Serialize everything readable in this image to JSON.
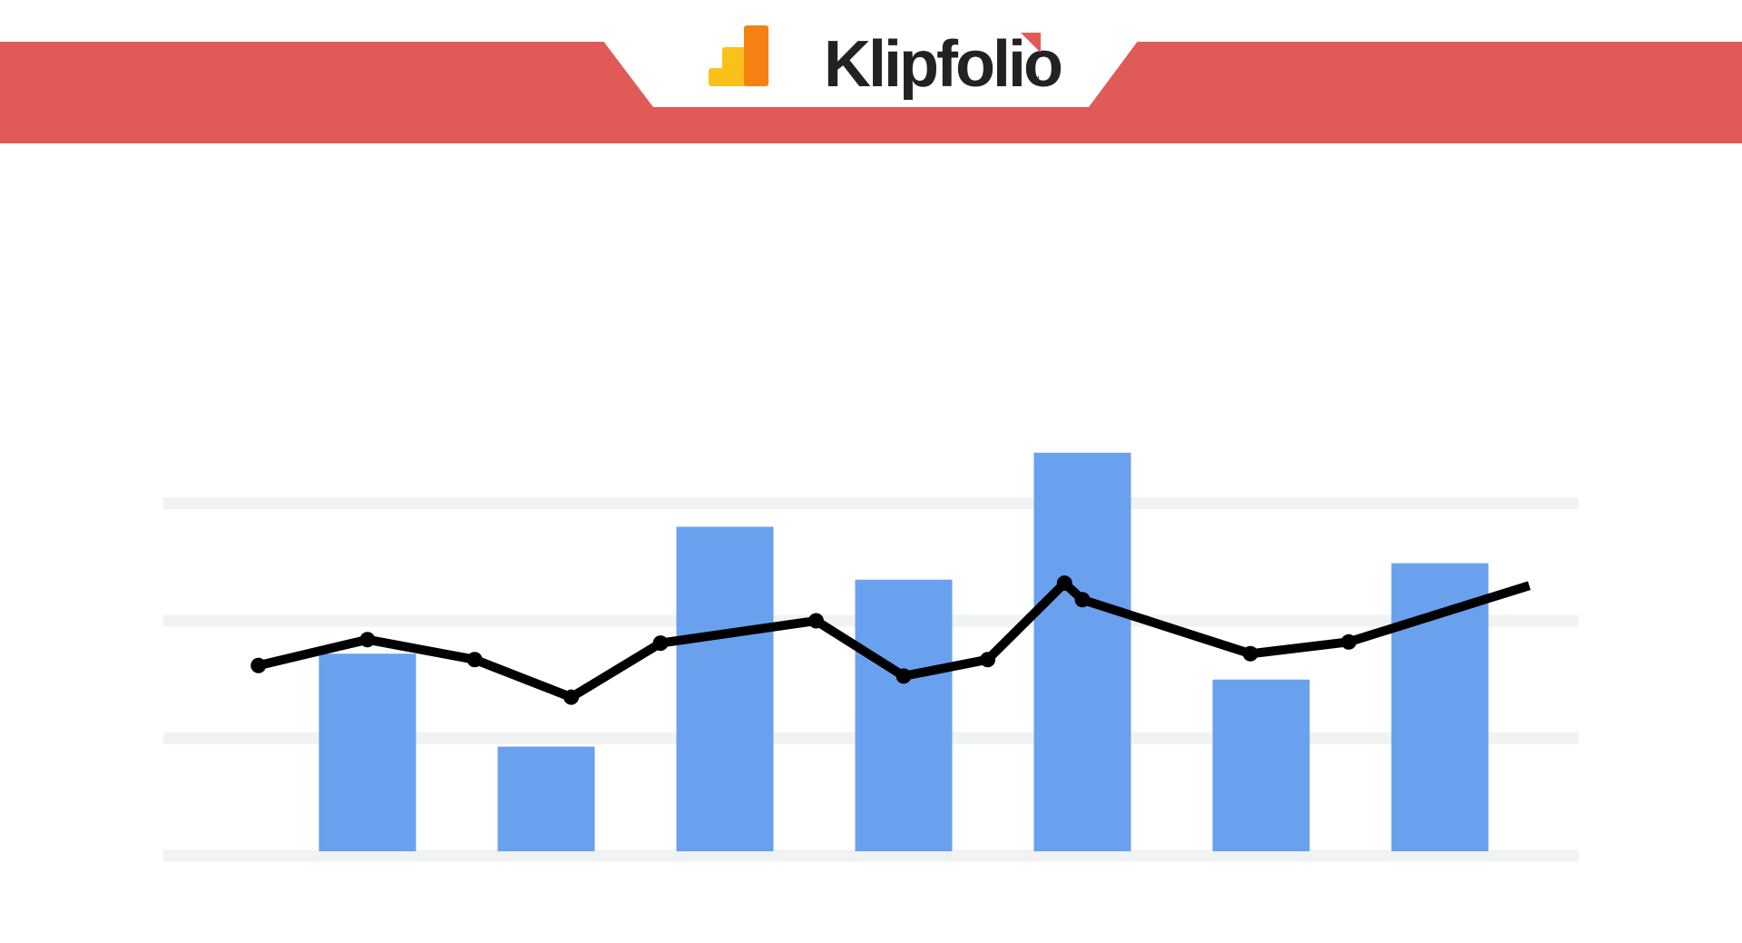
{
  "brand": {
    "name": "Klipfolio",
    "trademark": "™",
    "colors": {
      "banner": "#e05a57",
      "logo_ribbon": "#e05a57",
      "wordmark": "#222222",
      "analytics_icon_light": "#fbc11b",
      "analytics_icon_dark": "#f48111"
    },
    "icons": [
      "google-analytics-icon"
    ]
  },
  "chart_data": {
    "type": "bar",
    "title": "",
    "xlabel": "",
    "ylabel": "",
    "ylim": [
      0,
      4
    ],
    "grid": true,
    "tick_labels_shown": false,
    "categories": [
      "",
      "",
      "",
      "",
      "",
      "",
      ""
    ],
    "bar_color": "#6aa1ee",
    "line_color": "#000000",
    "grid_color": "#f1f2f2",
    "series": [
      {
        "type": "bar",
        "values": [
          1.72,
          0.93,
          2.8,
          2.35,
          3.43,
          1.5,
          2.49
        ]
      },
      {
        "type": "line",
        "x": [
          -0.61,
          0.0,
          0.6,
          1.14,
          1.64,
          2.51,
          3.0,
          3.47,
          3.9,
          4.0,
          4.94,
          5.49,
          6.5
        ],
        "values": [
          1.62,
          1.84,
          1.67,
          1.35,
          1.81,
          2.0,
          1.53,
          1.67,
          2.32,
          2.18,
          1.72,
          1.82,
          2.3
        ]
      }
    ]
  }
}
